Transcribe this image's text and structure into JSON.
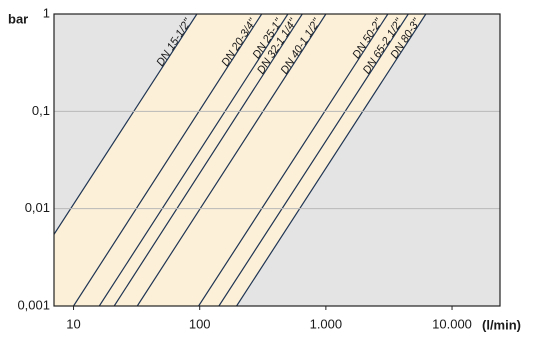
{
  "chart_data": {
    "type": "line",
    "y_label": "bar",
    "x_label": "(l/min)",
    "x_scale": "log",
    "y_scale": "log",
    "xlim": [
      7,
      24000
    ],
    "ylim": [
      0.001,
      1
    ],
    "xticks": [
      10,
      100,
      {
        "value": 1000,
        "label": "1.000"
      },
      {
        "value": 10000,
        "label": "10.000"
      }
    ],
    "yticks": [
      {
        "value": 0.001,
        "label": "0,001"
      },
      {
        "value": 0.01,
        "label": "0,01"
      },
      {
        "value": 0.1,
        "label": "0,1"
      },
      1
    ],
    "grid": true,
    "series": [
      {
        "name": "DN 15-1/2\"",
        "color": "#1f3553",
        "x": [
          3,
          95
        ],
        "values": [
          0.001,
          1
        ]
      },
      {
        "name": "DN 20-3/4\"",
        "color": "#1f3553",
        "x": [
          10,
          310
        ],
        "values": [
          0.001,
          1
        ]
      },
      {
        "name": "DN 25-1\"",
        "color": "#1f3553",
        "x": [
          16,
          500
        ],
        "values": [
          0.001,
          1
        ]
      },
      {
        "name": "DN 32-1 1/4\"",
        "color": "#1f3553",
        "x": [
          21,
          650
        ],
        "values": [
          0.001,
          1
        ]
      },
      {
        "name": "DN 40-1 1/2\"",
        "color": "#1f3553",
        "x": [
          32,
          1000
        ],
        "values": [
          0.001,
          1
        ]
      },
      {
        "name": "DN 50-2\"",
        "color": "#1f3553",
        "x": [
          98,
          3100
        ],
        "values": [
          0.001,
          1
        ]
      },
      {
        "name": "DN 65-2 1/2\"",
        "color": "#1f3553",
        "x": [
          142,
          4500
        ],
        "values": [
          0.001,
          1
        ]
      },
      {
        "name": "DN 80-3\"",
        "color": "#1f3553",
        "x": [
          196,
          6200
        ],
        "values": [
          0.001,
          1
        ]
      }
    ]
  }
}
